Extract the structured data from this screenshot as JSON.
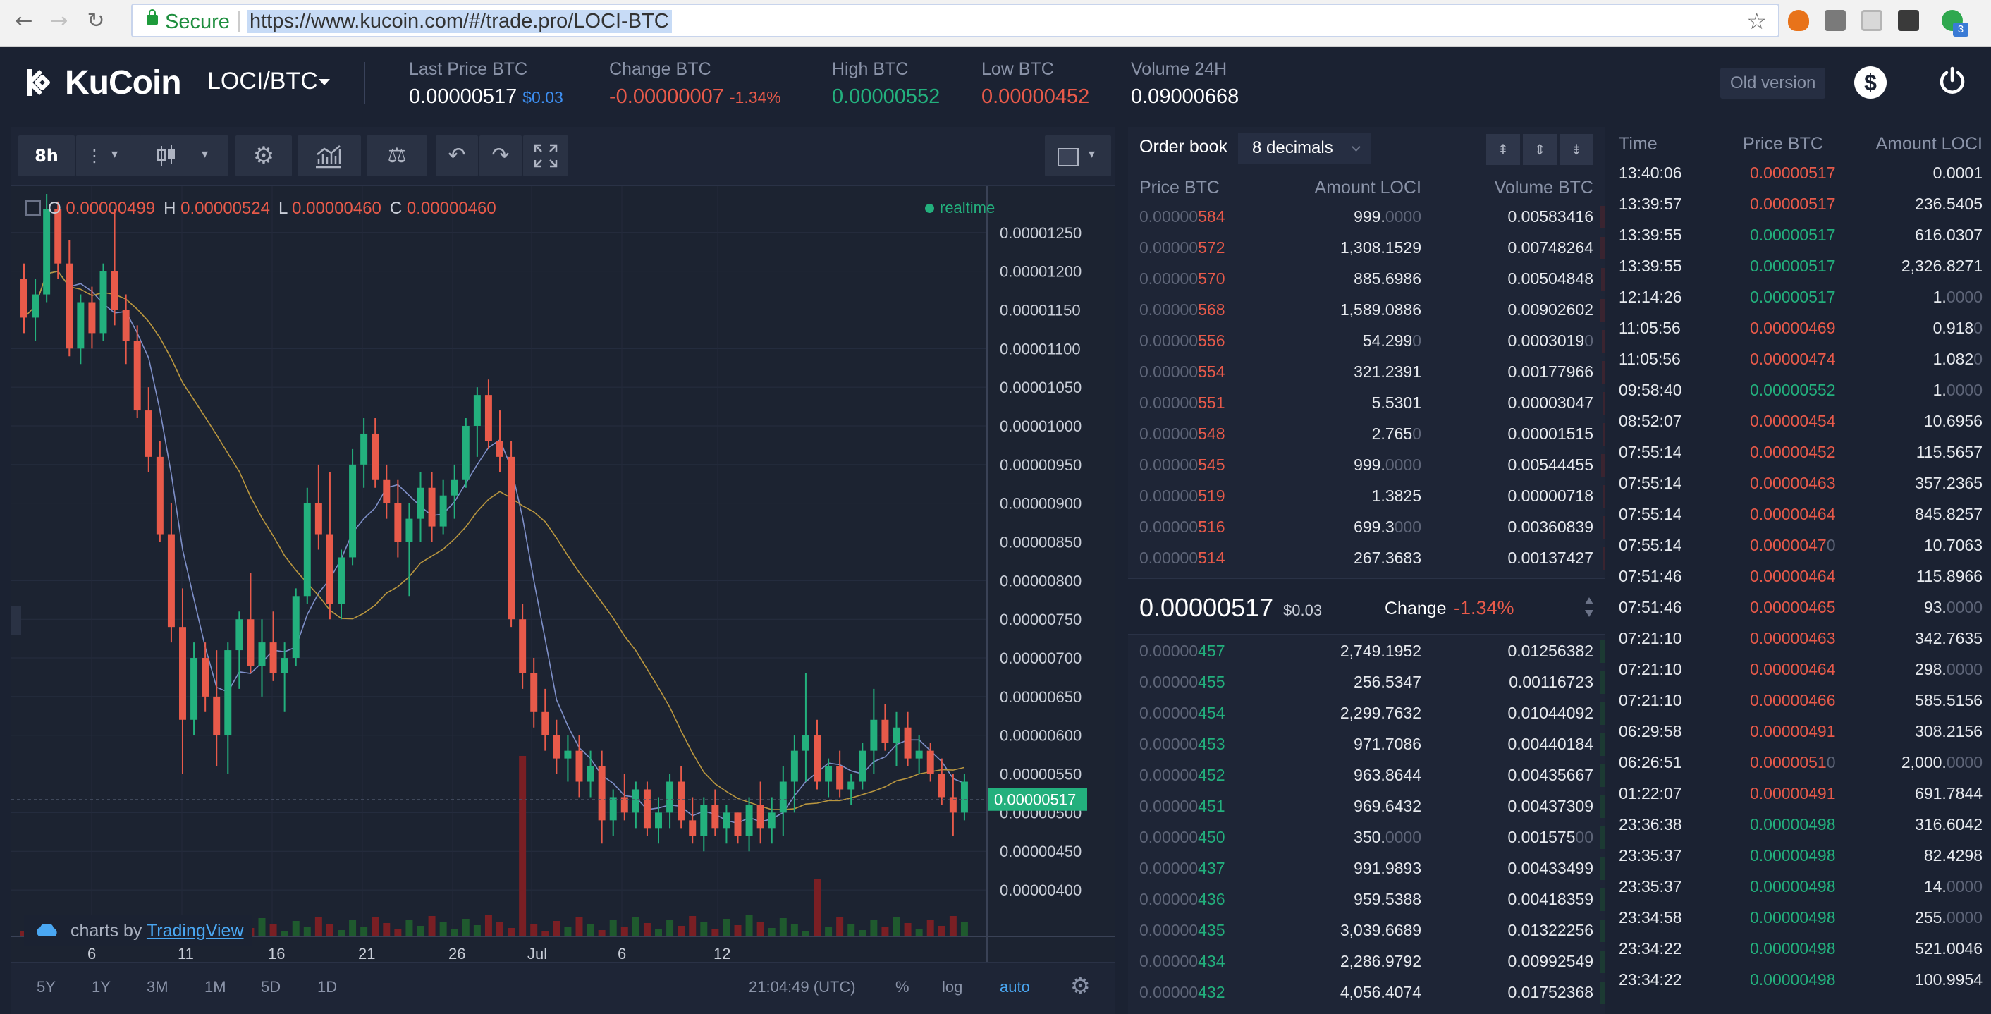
{
  "browser": {
    "back": "←",
    "forward": "→",
    "reload": "↻",
    "secure_label": "Secure",
    "url": "https://www.kucoin.com/#/trade.pro/LOCI-BTC",
    "star": "☆",
    "badge": "3"
  },
  "header": {
    "brand": "KuCoin",
    "pair": "LOCI/BTC",
    "stats": [
      {
        "label": "Last Price BTC",
        "value": "0.00000517",
        "sub": "$0.03",
        "value_color": "#ffffff",
        "sub_color": "#3d8ef0"
      },
      {
        "label": "Change BTC",
        "value": "-0.00000007",
        "sub": "-1.34%",
        "value_color": "#e85a4a",
        "sub_color": "#e85a4a"
      },
      {
        "label": "High BTC",
        "value": "0.00000552",
        "sub": "",
        "value_color": "#23b07d",
        "sub_color": "#23b07d"
      },
      {
        "label": "Low BTC",
        "value": "0.00000452",
        "sub": "",
        "value_color": "#e85a4a",
        "sub_color": "#e85a4a"
      },
      {
        "label": "Volume 24H",
        "value": "0.09000668",
        "sub": "",
        "value_color": "#ffffff",
        "sub_color": "#ffffff"
      }
    ],
    "old_version": "Old version",
    "dollar": "$"
  },
  "toolbar": {
    "interval": "8h"
  },
  "chart": {
    "ohlc": {
      "o_label": "O",
      "o": "0.00000499",
      "h_label": "H",
      "h": "0.00000524",
      "l_label": "L",
      "l": "0.00000460",
      "c_label": "C",
      "c": "0.00000460"
    },
    "realtime": "realtime",
    "tradingview_prefix": "charts by",
    "tradingview_link": "TradingView",
    "current_price_tag": "0.00000517",
    "bottom": {
      "ranges": [
        "5Y",
        "1Y",
        "3M",
        "1M",
        "5D",
        "1D"
      ],
      "time": "21:04:49 (UTC)",
      "percent": "%",
      "log": "log",
      "auto": "auto"
    }
  },
  "chart_data": {
    "type": "candlestick",
    "title": "",
    "y_ticks": [
      "0.00001250",
      "0.00001200",
      "0.00001150",
      "0.00001100",
      "0.00001050",
      "0.00001000",
      "0.00000950",
      "0.00000900",
      "0.00000850",
      "0.00000800",
      "0.00000750",
      "0.00000700",
      "0.00000650",
      "0.00000600",
      "0.00000550",
      "0.00000500",
      "0.00000450",
      "0.00000400"
    ],
    "x_ticks": [
      "6",
      "11",
      "16",
      "21",
      "26",
      "Jul",
      "6",
      "12"
    ],
    "ylim": [
      3.8e-06,
      1.31e-05
    ],
    "grid": true,
    "last_price": 5.17e-06,
    "candles": [
      [
        1.19e-05,
        1.21e-05,
        1.12e-05,
        1.14e-05
      ],
      [
        1.14e-05,
        1.19e-05,
        1.11e-05,
        1.17e-05
      ],
      [
        1.17e-05,
        1.3e-05,
        1.16e-05,
        1.28e-05
      ],
      [
        1.28e-05,
        1.29e-05,
        1.19e-05,
        1.21e-05
      ],
      [
        1.21e-05,
        1.24e-05,
        1.09e-05,
        1.1e-05
      ],
      [
        1.1e-05,
        1.17e-05,
        1.08e-05,
        1.16e-05
      ],
      [
        1.16e-05,
        1.18e-05,
        1.1e-05,
        1.12e-05
      ],
      [
        1.12e-05,
        1.21e-05,
        1.11e-05,
        1.2e-05
      ],
      [
        1.2e-05,
        1.28e-05,
        1.13e-05,
        1.15e-05
      ],
      [
        1.15e-05,
        1.17e-05,
        1.08e-05,
        1.11e-05
      ],
      [
        1.11e-05,
        1.13e-05,
        1.01e-05,
        1.02e-05
      ],
      [
        1.02e-05,
        1.05e-05,
        9.4e-06,
        9.6e-06
      ],
      [
        9.6e-06,
        9.8e-06,
        8.5e-06,
        8.6e-06
      ],
      [
        8.6e-06,
        9e-06,
        7.2e-06,
        7.4e-06
      ],
      [
        7.4e-06,
        7.9e-06,
        5.5e-06,
        6.2e-06
      ],
      [
        6.2e-06,
        7.2e-06,
        6e-06,
        7e-06
      ],
      [
        7e-06,
        7.2e-06,
        6.3e-06,
        6.5e-06
      ],
      [
        6.5e-06,
        7.1e-06,
        5.6e-06,
        6e-06
      ],
      [
        6e-06,
        7.2e-06,
        5.5e-06,
        7.1e-06
      ],
      [
        7.1e-06,
        7.6e-06,
        6.6e-06,
        7.5e-06
      ],
      [
        7.5e-06,
        8.1e-06,
        6.8e-06,
        6.9e-06
      ],
      [
        6.9e-06,
        7.5e-06,
        6.5e-06,
        7.2e-06
      ],
      [
        7.2e-06,
        7.6e-06,
        6.7e-06,
        6.8e-06
      ],
      [
        6.8e-06,
        7.2e-06,
        6.3e-06,
        7e-06
      ],
      [
        7e-06,
        7.9e-06,
        6.9e-06,
        7.8e-06
      ],
      [
        7.8e-06,
        9.2e-06,
        7.7e-06,
        9e-06
      ],
      [
        9e-06,
        9.5e-06,
        8.4e-06,
        8.6e-06
      ],
      [
        8.6e-06,
        9.4e-06,
        7.5e-06,
        7.7e-06
      ],
      [
        7.7e-06,
        8.4e-06,
        7.5e-06,
        8.3e-06
      ],
      [
        8.3e-06,
        9.7e-06,
        8.2e-06,
        9.5e-06
      ],
      [
        9.5e-06,
        1.01e-05,
        9.2e-06,
        9.9e-06
      ],
      [
        9.9e-06,
        1.01e-05,
        9.2e-06,
        9.3e-06
      ],
      [
        9.3e-06,
        9.5e-06,
        8.8e-06,
        9e-06
      ],
      [
        9e-06,
        9.3e-06,
        8.3e-06,
        8.5e-06
      ],
      [
        8.5e-06,
        9e-06,
        7.8e-06,
        8.8e-06
      ],
      [
        8.8e-06,
        9.4e-06,
        8.5e-06,
        9.2e-06
      ],
      [
        9.2e-06,
        9.4e-06,
        8.5e-06,
        8.7e-06
      ],
      [
        8.7e-06,
        9.3e-06,
        8.6e-06,
        9.1e-06
      ],
      [
        9.1e-06,
        9.5e-06,
        8.8e-06,
        9.3e-06
      ],
      [
        9.3e-06,
        1.01e-05,
        9.2e-06,
        1e-05
      ],
      [
        1e-05,
        1.05e-05,
        9.6e-06,
        1.04e-05
      ],
      [
        1.04e-05,
        1.06e-05,
        9.7e-06,
        9.8e-06
      ],
      [
        9.8e-06,
        1.02e-05,
        9.4e-06,
        9.6e-06
      ],
      [
        9.6e-06,
        9.8e-06,
        7.4e-06,
        7.5e-06
      ],
      [
        7.5e-06,
        7.7e-06,
        6.6e-06,
        6.8e-06
      ],
      [
        6.8e-06,
        7e-06,
        6.1e-06,
        6.3e-06
      ],
      [
        6.3e-06,
        6.6e-06,
        5.8e-06,
        6e-06
      ],
      [
        6e-06,
        6.2e-06,
        5.5e-06,
        5.7e-06
      ],
      [
        5.7e-06,
        6e-06,
        5.4e-06,
        5.8e-06
      ],
      [
        5.8e-06,
        6e-06,
        5.2e-06,
        5.4e-06
      ],
      [
        5.4e-06,
        5.8e-06,
        5.2e-06,
        5.6e-06
      ],
      [
        5.6e-06,
        5.8e-06,
        4.6e-06,
        4.9e-06
      ],
      [
        4.9e-06,
        5.3e-06,
        4.7e-06,
        5.2e-06
      ],
      [
        5.2e-06,
        5.5e-06,
        4.9e-06,
        5e-06
      ],
      [
        5e-06,
        5.4e-06,
        4.8e-06,
        5.3e-06
      ],
      [
        5.3e-06,
        5.4e-06,
        4.7e-06,
        4.8e-06
      ],
      [
        4.8e-06,
        5.2e-06,
        4.6e-06,
        5e-06
      ],
      [
        5e-06,
        5.5e-06,
        4.8e-06,
        5.4e-06
      ],
      [
        5.4e-06,
        5.6e-06,
        4.8e-06,
        4.9e-06
      ],
      [
        4.9e-06,
        5.2e-06,
        4.6e-06,
        4.7e-06
      ],
      [
        4.7e-06,
        5.2e-06,
        4.5e-06,
        5.1e-06
      ],
      [
        5.1e-06,
        5.3e-06,
        4.7e-06,
        4.8e-06
      ],
      [
        4.8e-06,
        5.1e-06,
        4.6e-06,
        5e-06
      ],
      [
        5e-06,
        5e-06,
        4.6e-06,
        4.7e-06
      ],
      [
        4.7e-06,
        5.2e-06,
        4.5e-06,
        5.1e-06
      ],
      [
        5.1e-06,
        5.4e-06,
        4.6e-06,
        4.8e-06
      ],
      [
        4.8e-06,
        5.2e-06,
        4.6e-06,
        5e-06
      ],
      [
        5e-06,
        5.6e-06,
        4.7e-06,
        5.4e-06
      ],
      [
        5.4e-06,
        6e-06,
        5e-06,
        5.8e-06
      ],
      [
        5.8e-06,
        6.8e-06,
        5.4e-06,
        6e-06
      ],
      [
        6e-06,
        6.2e-06,
        5.3e-06,
        5.4e-06
      ],
      [
        5.4e-06,
        5.7e-06,
        5.2e-06,
        5.6e-06
      ],
      [
        5.6e-06,
        5.8e-06,
        5.2e-06,
        5.3e-06
      ],
      [
        5.3e-06,
        5.5e-06,
        5.1e-06,
        5.4e-06
      ],
      [
        5.4e-06,
        5.9e-06,
        5.3e-06,
        5.8e-06
      ],
      [
        5.8e-06,
        6.6e-06,
        5.5e-06,
        6.2e-06
      ],
      [
        6.2e-06,
        6.4e-06,
        5.8e-06,
        5.9e-06
      ],
      [
        5.9e-06,
        6.3e-06,
        5.6e-06,
        6.1e-06
      ],
      [
        6.1e-06,
        6.3e-06,
        5.6e-06,
        5.7e-06
      ],
      [
        5.7e-06,
        6e-06,
        5.5e-06,
        5.8e-06
      ],
      [
        5.8e-06,
        5.9e-06,
        5.4e-06,
        5.5e-06
      ],
      [
        5.5e-06,
        5.7e-06,
        5.1e-06,
        5.2e-06
      ],
      [
        5.2e-06,
        5.5e-06,
        4.7e-06,
        5e-06
      ],
      [
        5e-06,
        5.5e-06,
        4.9e-06,
        5.4e-06
      ]
    ]
  },
  "orderbook": {
    "title": "Order book",
    "decimals": "8 decimals",
    "columns": [
      "Price BTC",
      "Amount LOCI",
      "Volume BTC"
    ],
    "asks": [
      {
        "pb": "0.00000",
        "ps": "584",
        "ab": "999.",
        "as": "0000",
        "v": "0.00583416",
        "vs": "",
        "bar": 0.012
      },
      {
        "pb": "0.00000",
        "ps": "572",
        "ab": "1,308.1529",
        "as": "",
        "v": "0.00748264",
        "vs": "",
        "bar": 0.012
      },
      {
        "pb": "0.00000",
        "ps": "570",
        "ab": "885.6986",
        "as": "",
        "v": "0.00504848",
        "vs": "",
        "bar": 0.01
      },
      {
        "pb": "0.00000",
        "ps": "568",
        "ab": "1,589.0886",
        "as": "",
        "v": "0.00902602",
        "vs": "",
        "bar": 0.012
      },
      {
        "pb": "0.00000",
        "ps": "556",
        "ab": "54.299",
        "as": "0",
        "v": "0.0003019",
        "vs": "0",
        "bar": 0.008
      },
      {
        "pb": "0.00000",
        "ps": "554",
        "ab": "321.2391",
        "as": "",
        "v": "0.00177966",
        "vs": "",
        "bar": 0.008
      },
      {
        "pb": "0.00000",
        "ps": "551",
        "ab": "5.5301",
        "as": "",
        "v": "0.00003047",
        "vs": "",
        "bar": 0.006
      },
      {
        "pb": "0.00000",
        "ps": "548",
        "ab": "2.765",
        "as": "0",
        "v": "0.00001515",
        "vs": "",
        "bar": 0.006
      },
      {
        "pb": "0.00000",
        "ps": "545",
        "ab": "999.",
        "as": "0000",
        "v": "0.00544455",
        "vs": "",
        "bar": 0.01
      },
      {
        "pb": "0.00000",
        "ps": "519",
        "ab": "1.3825",
        "as": "",
        "v": "0.00000718",
        "vs": "",
        "bar": 0.004
      },
      {
        "pb": "0.00000",
        "ps": "516",
        "ab": "699.3",
        "as": "000",
        "v": "0.00360839",
        "vs": "",
        "bar": 0.006
      },
      {
        "pb": "0.00000",
        "ps": "514",
        "ab": "267.3683",
        "as": "",
        "v": "0.00137427",
        "vs": "",
        "bar": 0.004
      }
    ],
    "mid": {
      "price": "0.00000517",
      "usd": "$0.03",
      "change_label": "Change",
      "change": "-1.34%"
    },
    "bids": [
      {
        "pb": "0.00000",
        "ps": "457",
        "ab": "2,749.1952",
        "as": "",
        "v": "0.01256382",
        "vs": "",
        "bar": 0.012
      },
      {
        "pb": "0.00000",
        "ps": "455",
        "ab": "256.5347",
        "as": "",
        "v": "0.00116723",
        "vs": "",
        "bar": 0.012
      },
      {
        "pb": "0.00000",
        "ps": "454",
        "ab": "2,299.7632",
        "as": "",
        "v": "0.01044092",
        "vs": "",
        "bar": 0.012
      },
      {
        "pb": "0.00000",
        "ps": "453",
        "ab": "971.7086",
        "as": "",
        "v": "0.00440184",
        "vs": "",
        "bar": 0.012
      },
      {
        "pb": "0.00000",
        "ps": "452",
        "ab": "963.8644",
        "as": "",
        "v": "0.00435667",
        "vs": "",
        "bar": 0.012
      },
      {
        "pb": "0.00000",
        "ps": "451",
        "ab": "969.6432",
        "as": "",
        "v": "0.00437309",
        "vs": "",
        "bar": 0.012
      },
      {
        "pb": "0.00000",
        "ps": "450",
        "ab": "350.",
        "as": "0000",
        "v": "0.001575",
        "vs": "00",
        "bar": 0.012
      },
      {
        "pb": "0.00000",
        "ps": "437",
        "ab": "991.9893",
        "as": "",
        "v": "0.00433499",
        "vs": "",
        "bar": 0.012
      },
      {
        "pb": "0.00000",
        "ps": "436",
        "ab": "959.5388",
        "as": "",
        "v": "0.00418359",
        "vs": "",
        "bar": 0.012
      },
      {
        "pb": "0.00000",
        "ps": "435",
        "ab": "3,039.6689",
        "as": "",
        "v": "0.01322256",
        "vs": "",
        "bar": 0.012
      },
      {
        "pb": "0.00000",
        "ps": "434",
        "ab": "2,286.9792",
        "as": "",
        "v": "0.00992549",
        "vs": "",
        "bar": 0.012
      },
      {
        "pb": "0.00000",
        "ps": "432",
        "ab": "4,056.4074",
        "as": "",
        "v": "0.01752368",
        "vs": "",
        "bar": 0.012
      }
    ]
  },
  "trades": {
    "columns": [
      "Time",
      "Price BTC",
      "Amount LOCI"
    ],
    "rows": [
      {
        "t": "13:40:06",
        "p": "0.00000517",
        "s": "sell",
        "a": "0.0001",
        "ad": ""
      },
      {
        "t": "13:39:57",
        "p": "0.00000517",
        "s": "sell",
        "a": "236.5405",
        "ad": ""
      },
      {
        "t": "13:39:55",
        "p": "0.00000517",
        "s": "buy",
        "a": "616.0307",
        "ad": ""
      },
      {
        "t": "13:39:55",
        "p": "0.00000517",
        "s": "buy",
        "a": "2,326.8271",
        "ad": ""
      },
      {
        "t": "12:14:26",
        "p": "0.00000517",
        "s": "buy",
        "a": "1.",
        "ad": "0000"
      },
      {
        "t": "11:05:56",
        "p": "0.00000469",
        "s": "sell",
        "a": "0.918",
        "ad": "0"
      },
      {
        "t": "11:05:56",
        "p": "0.00000474",
        "s": "sell",
        "a": "1.082",
        "ad": "0"
      },
      {
        "t": "09:58:40",
        "p": "0.00000552",
        "s": "buy",
        "a": "1.",
        "ad": "0000"
      },
      {
        "t": "08:52:07",
        "p": "0.00000454",
        "s": "sell",
        "a": "10.6956",
        "ad": ""
      },
      {
        "t": "07:55:14",
        "p": "0.00000452",
        "s": "sell",
        "a": "115.5657",
        "ad": ""
      },
      {
        "t": "07:55:14",
        "p": "0.00000463",
        "s": "sell",
        "a": "357.2365",
        "ad": ""
      },
      {
        "t": "07:55:14",
        "p": "0.00000464",
        "s": "sell",
        "a": "845.8257",
        "ad": ""
      },
      {
        "t": "07:55:14",
        "p": "0.0000047",
        "pd": "0",
        "s": "sell",
        "a": "10.7063",
        "ad": ""
      },
      {
        "t": "07:51:46",
        "p": "0.00000464",
        "s": "sell",
        "a": "115.8966",
        "ad": ""
      },
      {
        "t": "07:51:46",
        "p": "0.00000465",
        "s": "sell",
        "a": "93.",
        "ad": "0000"
      },
      {
        "t": "07:21:10",
        "p": "0.00000463",
        "s": "sell",
        "a": "342.7635",
        "ad": ""
      },
      {
        "t": "07:21:10",
        "p": "0.00000464",
        "s": "sell",
        "a": "298.",
        "ad": "0000"
      },
      {
        "t": "07:21:10",
        "p": "0.00000466",
        "s": "sell",
        "a": "585.5156",
        "ad": ""
      },
      {
        "t": "06:29:58",
        "p": "0.00000491",
        "s": "sell",
        "a": "308.2156",
        "ad": ""
      },
      {
        "t": "06:26:51",
        "p": "0.0000051",
        "pd": "0",
        "s": "sell",
        "a": "2,000.",
        "ad": "0000"
      },
      {
        "t": "01:22:07",
        "p": "0.00000491",
        "s": "sell",
        "a": "691.7844",
        "ad": ""
      },
      {
        "t": "23:36:38",
        "p": "0.00000498",
        "s": "buy",
        "a": "316.6042",
        "ad": ""
      },
      {
        "t": "23:35:37",
        "p": "0.00000498",
        "s": "buy",
        "a": "82.4298",
        "ad": ""
      },
      {
        "t": "23:35:37",
        "p": "0.00000498",
        "s": "buy",
        "a": "14.",
        "ad": "0000"
      },
      {
        "t": "23:34:58",
        "p": "0.00000498",
        "s": "buy",
        "a": "255.",
        "ad": "0000"
      },
      {
        "t": "23:34:22",
        "p": "0.00000498",
        "s": "buy",
        "a": "521.0046",
        "ad": ""
      },
      {
        "t": "23:34:22",
        "p": "0.00000498",
        "s": "buy",
        "a": "100.9954",
        "ad": ""
      }
    ]
  },
  "colors": {
    "up": "#23b07d",
    "down": "#e85a4a",
    "ma_fast": "#7e8fc8",
    "ma_slow": "#b9963f",
    "vol_up": "#1f5a2e",
    "vol_down": "#7a1f24"
  }
}
